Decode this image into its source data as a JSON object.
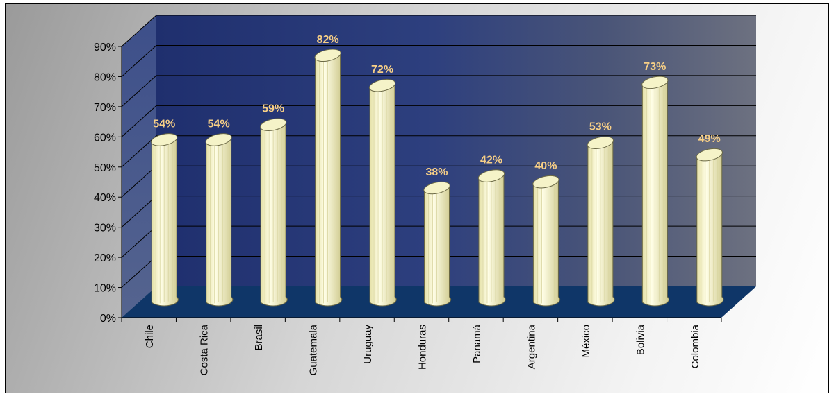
{
  "chart_data": {
    "type": "bar",
    "style": "3d-cylinder",
    "categories": [
      "Chile",
      "Costa Rica",
      "Brasil",
      "Guatemala",
      "Uruguay",
      "Honduras",
      "Panamá",
      "Argentina",
      "México",
      "Bolivia",
      "Colombia"
    ],
    "values": [
      54,
      54,
      59,
      82,
      72,
      38,
      42,
      40,
      53,
      73,
      49
    ],
    "data_labels": [
      "54%",
      "54%",
      "59%",
      "82%",
      "72%",
      "38%",
      "42%",
      "40%",
      "53%",
      "73%",
      "49%"
    ],
    "y_ticks": [
      "0%",
      "10%",
      "20%",
      "30%",
      "40%",
      "50%",
      "60%",
      "70%",
      "80%",
      "90%"
    ],
    "ylim": [
      0,
      90
    ],
    "grid": true,
    "legend": "none",
    "colors": {
      "bar": "#f2f0bf",
      "bar_light": "#fffee2",
      "bar_dark": "#c9c58c",
      "data_label": "#f7cf86",
      "plot_back": "#2c3d7a",
      "floor": "#10376b",
      "side_wall": "#3a4c86"
    }
  }
}
